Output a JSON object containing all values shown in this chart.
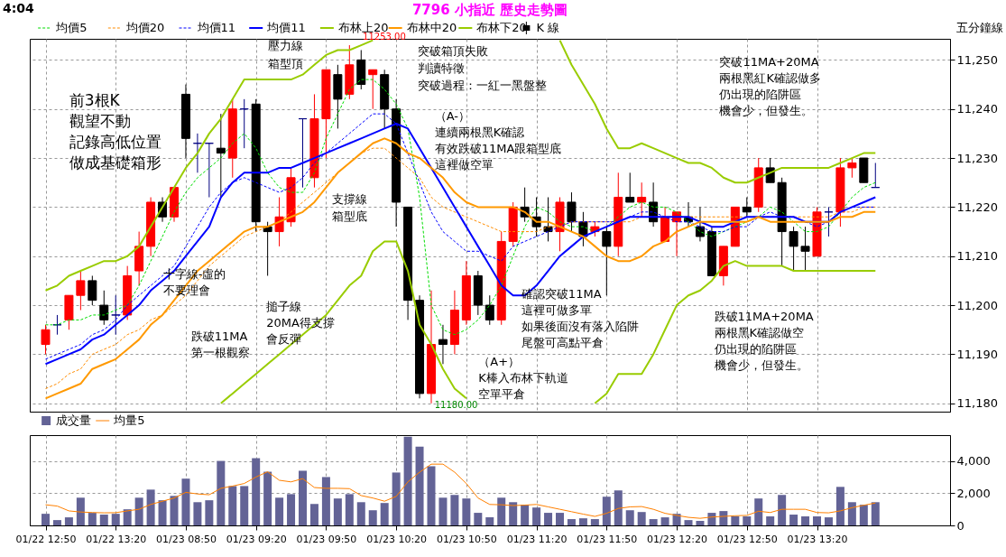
{
  "chart_data": [
    {
      "type": "candlestick",
      "title": "7796 小指近  歷史走勢圖",
      "ylabel": "五分鐘線",
      "categories": [
        null,
        null,
        null,
        null,
        null,
        null,
        null,
        null,
        null,
        null,
        null,
        null,
        null,
        null,
        null,
        null,
        null,
        null,
        null,
        null,
        null,
        null,
        null,
        null,
        null,
        null,
        null,
        null,
        null,
        null,
        null,
        null,
        null,
        null,
        null,
        null,
        null,
        null,
        null,
        null,
        null,
        null,
        null,
        null,
        null,
        null,
        null,
        null,
        null,
        null,
        null,
        null,
        null,
        null,
        null,
        null,
        null,
        null,
        null,
        null,
        null,
        null,
        null,
        null,
        null,
        null,
        null,
        null,
        null,
        null,
        null,
        null
      ],
      "series": [
        {
          "name": "均價5",
          "type": "line",
          "color": "#00dd00",
          "line_style": "dashed",
          "values": [
            11196,
            11196,
            11197,
            11197,
            11198,
            11198,
            11199,
            11200,
            11204,
            11209,
            11214,
            11219,
            11223,
            11226,
            11228,
            11230,
            11233,
            11235,
            11232,
            11227,
            11224,
            11223,
            11223,
            11227,
            11234,
            11239,
            11244,
            11246,
            11246,
            11244,
            11241,
            11236,
            11222,
            11200,
            11195,
            11194,
            11195,
            11197,
            11200,
            11204,
            11210,
            11216,
            11220,
            11219,
            11217,
            11216,
            11216,
            11215,
            11216,
            11218,
            11220,
            11221,
            11220,
            11220,
            11219,
            11217,
            11215,
            11214,
            11215,
            11216,
            11217,
            11218,
            11220,
            11219,
            11217,
            11215,
            11215,
            11216,
            11219,
            11222,
            11224,
            11225
          ]
        },
        {
          "name": "均價20",
          "type": "line",
          "color": "#ff8c00",
          "line_style": "dashed",
          "values": [
            11183,
            11184,
            11186,
            11187,
            11190,
            11191,
            11192,
            11194,
            11195,
            11197,
            11198,
            11200,
            11202,
            11205,
            11208,
            11210,
            11212,
            11214,
            11215,
            11216,
            11217,
            11219,
            11221,
            11223,
            11225,
            11227,
            11229,
            11231,
            11232,
            11232,
            11230,
            11228,
            11226,
            11222,
            11220,
            11219,
            11218,
            11217,
            11216,
            11215,
            11215,
            11215,
            11215,
            11216,
            11216,
            11217,
            11217,
            11217,
            11217,
            11217,
            11217,
            11218,
            11218,
            11218,
            11218,
            11218,
            11218,
            11218,
            11218,
            11218,
            11218,
            11218,
            11218,
            11218,
            11218,
            11218,
            11218,
            11218,
            11219,
            11219,
            11220,
            11220
          ]
        },
        {
          "name": "均價11",
          "type": "line",
          "color": "#0000ff",
          "line_style": "dashed",
          "values": [
            11189,
            11190,
            11191,
            11192,
            11194,
            11195,
            11197,
            11200,
            11202,
            11204,
            11206,
            11208,
            11212,
            11216,
            11220,
            11223,
            11225,
            11226,
            11225,
            11224,
            11223,
            11224,
            11226,
            11229,
            11231,
            11233,
            11235,
            11237,
            11239,
            11239,
            11237,
            11231,
            11225,
            11219,
            11215,
            11213,
            11211,
            11211,
            11210,
            11209,
            11212,
            11213,
            11214,
            11215,
            11216,
            11217,
            11217,
            11217,
            11217,
            11217,
            11218,
            11219,
            11219,
            11218,
            11217,
            11217,
            11216,
            11215,
            11215,
            11216,
            11216,
            11218,
            11219,
            11218,
            11218,
            11217,
            11216,
            11217,
            11219,
            11220,
            11220,
            11220
          ]
        },
        {
          "name": "均價11",
          "type": "line",
          "color": "#0000ff",
          "line_style": "solid",
          "values": [
            11188,
            11189,
            11190,
            11191,
            11193,
            11194,
            11196,
            11198,
            11200,
            11203,
            11205,
            11207,
            11210,
            11213,
            11216,
            11222,
            11225,
            11227,
            11227,
            11227,
            11228,
            11228,
            11229,
            11230,
            11231,
            11232,
            11233,
            11234,
            11235,
            11236,
            11237,
            11236,
            11232,
            11228,
            11224,
            11220,
            11216,
            11212,
            11208,
            11204,
            11202,
            11202,
            11204,
            11207,
            11210,
            11212,
            11214,
            11215,
            11216,
            11217,
            11218,
            11218,
            11218,
            11218,
            11218,
            11218,
            11217,
            11216,
            11216,
            11217,
            11218,
            11218,
            11218,
            11218,
            11218,
            11217,
            11217,
            11217,
            11219,
            11220,
            11221,
            11222
          ]
        },
        {
          "name": "布林上20",
          "type": "line",
          "color": "#99cc00",
          "line_style": "solid",
          "values": [
            11203,
            11204,
            11206,
            11207,
            11208,
            11209,
            11209,
            11210,
            11212,
            11216,
            11220,
            11224,
            11228,
            11231,
            11235,
            11238,
            11242,
            11246,
            11246,
            11246,
            11246,
            11246,
            11247,
            11249,
            11251,
            11252,
            11252,
            11253,
            11254,
            null,
            null,
            null,
            null,
            null,
            null,
            null,
            null,
            null,
            null,
            null,
            null,
            null,
            null,
            null,
            11254,
            11249,
            11245,
            11241,
            11236,
            11232,
            11232,
            11233,
            11232,
            11231,
            11230,
            11229,
            11229,
            11228,
            11226,
            11225,
            11225,
            11226,
            11227,
            11228,
            11228,
            11228,
            11228,
            11228,
            11229,
            11230,
            11231,
            11231
          ]
        },
        {
          "name": "布林中20",
          "type": "line",
          "color": "#ff9900",
          "line_style": "solid",
          "values": [
            11181,
            11182,
            11183,
            11184,
            11187,
            11188,
            11189,
            11191,
            11193,
            11196,
            11198,
            11201,
            11204,
            11207,
            11209,
            11211,
            11213,
            11215,
            11216,
            11216,
            11217,
            11218,
            11219,
            11221,
            11224,
            11227,
            11229,
            11231,
            11233,
            11234,
            11233,
            11231,
            11230,
            11228,
            11226,
            11223,
            11221,
            11220,
            11220,
            11220,
            11220,
            11219,
            11217,
            11217,
            11216,
            11215,
            11214,
            11212,
            11210,
            11209,
            11209,
            11210,
            11212,
            11213,
            11215,
            11216,
            11217,
            11217,
            11217,
            11217,
            11217,
            11218,
            11217,
            11217,
            11217,
            11217,
            11217,
            11217,
            11218,
            11218,
            11219,
            11219
          ]
        },
        {
          "name": "布林下20",
          "type": "line",
          "color": "#99cc00",
          "line_style": "solid",
          "values": [
            null,
            null,
            null,
            null,
            null,
            null,
            null,
            null,
            null,
            null,
            null,
            null,
            null,
            null,
            null,
            11180,
            11182,
            11184,
            11186,
            11188,
            11190,
            11192,
            11194,
            11196,
            11198,
            11201,
            11204,
            11206,
            11211,
            11213,
            11213,
            11207,
            11196,
            11192,
            11187,
            11183,
            11181,
            null,
            null,
            null,
            null,
            null,
            null,
            null,
            null,
            null,
            null,
            11180,
            11182,
            11186,
            11186,
            11186,
            11190,
            11195,
            11200,
            11202,
            11203,
            11205,
            11208,
            11209,
            11208,
            11208,
            11208,
            11208,
            11207,
            11207,
            11207,
            11207,
            11207,
            11207,
            11207,
            11207
          ]
        },
        {
          "name": "K 線",
          "ohlc": [
            [
              11192,
              11196,
              11190,
              11195
            ],
            [
              11196,
              11198,
              11194,
              11196
            ],
            [
              11197,
              11202,
              11195,
              11202
            ],
            [
              11202,
              11207,
              11199,
              11205
            ],
            [
              11205,
              11206,
              11200,
              11201
            ],
            [
              11200,
              11203,
              11196,
              11197
            ],
            [
              11198,
              11202,
              11194,
              11198
            ],
            [
              11198,
              11208,
              11197,
              11206
            ],
            [
              11207,
              11215,
              11204,
              11212
            ],
            [
              11212,
              11222,
              11210,
              11221
            ],
            [
              11221,
              11222,
              11217,
              11218
            ],
            [
              11218,
              11224,
              11217,
              11224
            ],
            [
              11243,
              11245,
              11230,
              11234
            ],
            [
              11233,
              11235,
              11227,
              11233
            ],
            [
              11233,
              11233,
              11222,
              11233
            ],
            [
              11232,
              11239,
              11222,
              11231
            ],
            [
              11230,
              11242,
              11226,
              11240
            ],
            [
              11240,
              11242,
              11232,
              11240
            ],
            [
              11241,
              11242,
              11215,
              11217
            ],
            [
              11216,
              11217,
              11206,
              11215
            ],
            [
              11215,
              11222,
              11212,
              11218
            ],
            [
              11217,
              11228,
              11216,
              11226
            ],
            [
              11238,
              11238,
              11224,
              11238
            ],
            [
              11226,
              11243,
              11224,
              11238
            ],
            [
              11238,
              11248,
              11230,
              11248
            ],
            [
              11247,
              11249,
              11236,
              11242
            ],
            [
              11243,
              11253,
              11242,
              11249
            ],
            [
              11250,
              11252,
              11244,
              11245
            ],
            [
              11247,
              11248,
              11240,
              11248
            ],
            [
              11247,
              11248,
              11236,
              11240
            ],
            [
              11240,
              11242,
              11216,
              11221
            ],
            [
              11220,
              11220,
              11197,
              11201
            ],
            [
              11201,
              11202,
              11181,
              11182
            ],
            [
              11182,
              11203,
              11180,
              11192
            ],
            [
              11193,
              11196,
              11188,
              11192
            ],
            [
              11192,
              11203,
              11190,
              11199
            ],
            [
              11197,
              11209,
              11196,
              11206
            ],
            [
              11206,
              11207,
              11198,
              11200
            ],
            [
              11200,
              11202,
              11196,
              11197
            ],
            [
              11197,
              11215,
              11196,
              11213
            ],
            [
              11213,
              11221,
              11212,
              11220
            ],
            [
              11220,
              11224,
              11217,
              11218
            ],
            [
              11218,
              11222,
              11214,
              11216
            ],
            [
              11216,
              11222,
              11213,
              11215
            ],
            [
              11215,
              11222,
              11211,
              11221
            ],
            [
              11221,
              11223,
              11215,
              11217
            ],
            [
              11217,
              11219,
              11212,
              11214
            ],
            [
              11215,
              11217,
              11214,
              11216
            ],
            [
              11215,
              11216,
              11202,
              11212
            ],
            [
              11212,
              11227,
              11210,
              11222
            ],
            [
              11222,
              11227,
              11221,
              11221
            ],
            [
              11221,
              11225,
              11218,
              11222
            ],
            [
              11221,
              11225,
              11216,
              11217
            ],
            [
              11213,
              11220,
              11213,
              11218
            ],
            [
              11217,
              11219,
              11210,
              11219
            ],
            [
              11218,
              11221,
              11216,
              11217
            ],
            [
              11216,
              11220,
              11213,
              11214
            ],
            [
              11215,
              11216,
              11206,
              11206
            ],
            [
              11206,
              11212,
              11204,
              11212
            ],
            [
              11212,
              11220,
              11212,
              11220
            ],
            [
              11220,
              11222,
              11218,
              11219
            ],
            [
              11220,
              11230,
              11219,
              11228
            ],
            [
              11228,
              11230,
              11225,
              11225
            ],
            [
              11225,
              11226,
              11208,
              11215
            ],
            [
              11215,
              11216,
              11207,
              11212
            ],
            [
              11212,
              11216,
              11207,
              11211
            ],
            [
              11210,
              11220,
              11210,
              11219
            ],
            [
              11219,
              11220,
              11214,
              11219
            ],
            [
              11219,
              11230,
              11216,
              11228
            ],
            [
              11228,
              11230,
              11226,
              11229
            ],
            [
              11230,
              11230,
              11225,
              11225
            ],
            [
              11224,
              11229,
              11224,
              11224
            ]
          ],
          "colors": [
            "#ff0000",
            "#000080",
            "#ff0000",
            "#ff0000",
            "#000000",
            "#000000",
            "#000080",
            "#ff0000",
            "#ff0000",
            "#ff0000",
            "#000000",
            "#ff0000",
            "#000000",
            "#000080",
            "#000080",
            "#000000",
            "#ff0000",
            "#000080",
            "#000000",
            "#000000",
            "#ff0000",
            "#ff0000",
            "#000080",
            "#ff0000",
            "#ff0000",
            "#000000",
            "#ff0000",
            "#000000",
            "#ff0000",
            "#000000",
            "#000000",
            "#000000",
            "#000000",
            "#ff0000",
            "#000000",
            "#ff0000",
            "#ff0000",
            "#000000",
            "#000000",
            "#ff0000",
            "#ff0000",
            "#000000",
            "#000000",
            "#000000",
            "#ff0000",
            "#000000",
            "#000000",
            "#ff0000",
            "#000000",
            "#ff0000",
            "#000000",
            "#ff0000",
            "#000000",
            "#ff0000",
            "#ff0000",
            "#000000",
            "#000000",
            "#000000",
            "#ff0000",
            "#ff0000",
            "#000000",
            "#ff0000",
            "#000000",
            "#000000",
            "#000000",
            "#000000",
            "#ff0000",
            "#000080",
            "#ff0000",
            "#ff0000",
            "#000000",
            "#000080"
          ]
        }
      ],
      "ylim": [
        11178.3,
        11254.3
      ],
      "yticks": [
        {
          "value": 11180,
          "label": "11,180"
        },
        {
          "value": 11190,
          "label": "11,190"
        },
        {
          "value": 11200,
          "label": "11,200"
        },
        {
          "value": 11210,
          "label": "11,210"
        },
        {
          "value": 11220,
          "label": "11,220"
        },
        {
          "value": 11230,
          "label": "11,230"
        },
        {
          "value": 11240,
          "label": "11,240"
        },
        {
          "value": 11250,
          "label": "11,250"
        }
      ],
      "grid": true,
      "legend": "top",
      "tick_labels": "y",
      "annotations": [
        "4:04",
        "壓力線",
        "箱型頂",
        "11253.00",
        "突破箱頂失敗",
        "判讀特徵",
        "突破過程：一紅一黑盤整",
        "前3根K",
        "觀望不動",
        "記錄高低位置",
        "做成基礎箱形",
        "（A-）",
        "連續兩根黑K確認",
        "有效跌破11MA跟箱型底",
        "這裡做空單",
        "支撐線",
        "箱型底",
        "十字線-虛的",
        "不要理會",
        "跌破11MA",
        "第一根觀察",
        "搥子線",
        "20MA得支撐",
        "會反彈",
        "11180.00",
        "（A+）",
        "K棒入布林下軌道",
        "空單平倉",
        "確認突破11MA",
        "這裡可做多單",
        "如果後面沒有落入陷阱",
        "尾盤可高點平倉",
        "突破11MA+20MA",
        "兩根黑紅K確認做多",
        "仍出現的陷阱區",
        "機會少，但發生。",
        "跌破11MA+20MA",
        "兩根黑K確認做空",
        "仍出現的陷阱區",
        "機會少，但發生。"
      ]
    },
    {
      "type": "bar",
      "categories": [
        "01/22 12:50",
        null,
        null,
        null,
        null,
        null,
        "01/22 13:20",
        null,
        null,
        null,
        null,
        null,
        "01/23 08:50",
        null,
        null,
        null,
        null,
        null,
        "01/23 09:20",
        null,
        null,
        null,
        null,
        null,
        "01/23 09:50",
        null,
        null,
        null,
        null,
        null,
        "01/23 10:20",
        null,
        null,
        null,
        null,
        null,
        "01/23 10:50",
        null,
        null,
        null,
        null,
        null,
        "01/23 11:20",
        null,
        null,
        null,
        null,
        null,
        "01/23 11:50",
        null,
        null,
        null,
        null,
        null,
        "01/23 12:20",
        null,
        null,
        null,
        null,
        null,
        "01/23 12:50",
        null,
        null,
        null,
        null,
        null,
        "01/23 13:20",
        null,
        null,
        null,
        null,
        null
      ],
      "series": [
        {
          "name": "成交量",
          "color": "#636396",
          "values": [
            720,
            330,
            500,
            1720,
            780,
            670,
            720,
            1000,
            1720,
            2220,
            1560,
            1830,
            2900,
            1440,
            1560,
            4000,
            2440,
            2440,
            4170,
            3330,
            1720,
            1940,
            3390,
            1330,
            3000,
            1670,
            1940,
            1440,
            940,
            1390,
            3280,
            5500,
            4890,
            3670,
            1720,
            1890,
            1670,
            780,
            500,
            1720,
            1440,
            1280,
            1110,
            780,
            780,
            390,
            440,
            390,
            1780,
            2170,
            940,
            830,
            390,
            500,
            720,
            330,
            280,
            780,
            890,
            560,
            560,
            1670,
            560,
            1890,
            670,
            560,
            560,
            500,
            2390,
            1440,
            1280,
            1440
          ]
        },
        {
          "name": "均量5",
          "type": "line",
          "color": "#ff8000",
          "values": [
            1280,
            1200,
            900,
            830,
            800,
            780,
            790,
            900,
            1000,
            1300,
            1500,
            1700,
            2050,
            1950,
            1900,
            2300,
            2440,
            2600,
            3000,
            3330,
            2800,
            2700,
            2900,
            2350,
            2300,
            2300,
            2280,
            1850,
            1700,
            1500,
            1800,
            2700,
            3300,
            3800,
            3800,
            3300,
            2600,
            1700,
            1300,
            1280,
            1230,
            1260,
            1300,
            1150,
            1000,
            850,
            700,
            560,
            750,
            1050,
            1150,
            1170,
            1000,
            750,
            620,
            500,
            440,
            520,
            560,
            600,
            620,
            880,
            800,
            1000,
            1000,
            1000,
            800,
            780,
            900,
            1100,
            1250,
            1390
          ]
        }
      ],
      "ylim": [
        0,
        5600
      ],
      "yticks": [
        0,
        {
          "value": 2000,
          "label": "2,000"
        },
        {
          "value": 4000,
          "label": "4,000"
        }
      ],
      "grid": true,
      "legend": "top left"
    }
  ]
}
